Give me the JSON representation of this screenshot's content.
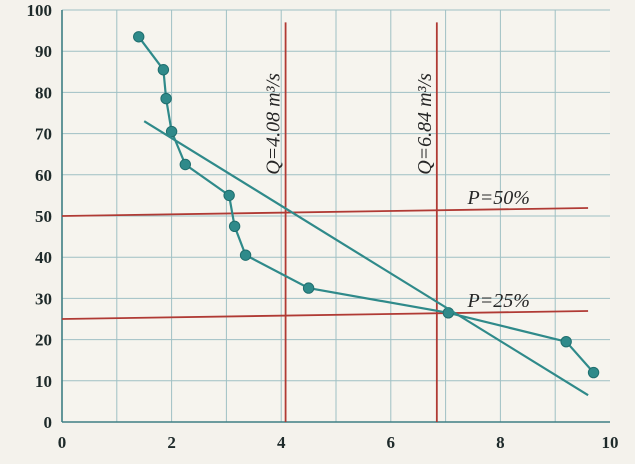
{
  "chart_data": {
    "type": "line",
    "title": "",
    "xlabel": "",
    "ylabel": "",
    "xlim": [
      0,
      10
    ],
    "ylim": [
      0,
      100
    ],
    "x_ticks": [
      0,
      2,
      4,
      6,
      8,
      10
    ],
    "y_ticks": [
      0,
      10,
      20,
      30,
      40,
      50,
      60,
      70,
      80,
      90,
      100
    ],
    "x_tick_labels": [
      "0",
      "2",
      "4",
      "6",
      "8",
      "10"
    ],
    "y_tick_labels": [
      "0",
      "10",
      "20",
      "30",
      "40",
      "50",
      "60",
      "70",
      "80",
      "90",
      "100"
    ],
    "grid": true,
    "series": [
      {
        "kind": "empirical",
        "color": "#2f8a8a",
        "points": [
          {
            "x": 1.4,
            "y": 93.5
          },
          {
            "x": 1.85,
            "y": 85.5
          },
          {
            "x": 1.9,
            "y": 78.5
          },
          {
            "x": 2.0,
            "y": 70.5
          },
          {
            "x": 2.25,
            "y": 62.5
          },
          {
            "x": 3.05,
            "y": 55.0
          },
          {
            "x": 3.15,
            "y": 47.5
          },
          {
            "x": 3.35,
            "y": 40.5
          },
          {
            "x": 4.5,
            "y": 32.5
          },
          {
            "x": 7.05,
            "y": 26.5
          },
          {
            "x": 9.2,
            "y": 19.5
          },
          {
            "x": 9.7,
            "y": 12.0
          }
        ]
      },
      {
        "kind": "fitted",
        "color": "#2f8a8a",
        "points": [
          {
            "x": 1.5,
            "y": 73.0
          },
          {
            "x": 9.6,
            "y": 6.5
          }
        ]
      }
    ],
    "reference_lines": [
      {
        "orientation": "vertical",
        "x": 4.08,
        "label": "Q=4.08 m³/s",
        "color": "#b03a34"
      },
      {
        "orientation": "vertical",
        "x": 6.84,
        "label": "Q=6.84 m³/s",
        "color": "#b03a34"
      },
      {
        "orientation": "horizontal",
        "y": 50,
        "label": "P=50%",
        "color": "#b03a34"
      },
      {
        "orientation": "horizontal",
        "y": 25,
        "label": "P=25%",
        "color": "#b03a34"
      }
    ]
  }
}
